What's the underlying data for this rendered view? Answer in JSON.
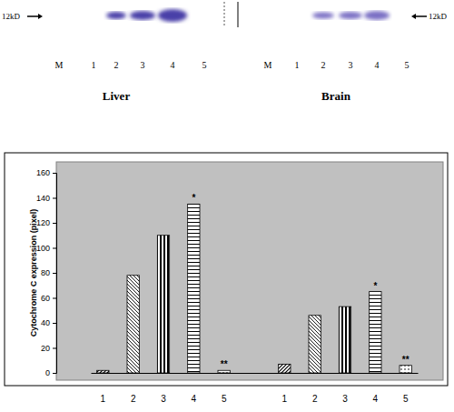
{
  "blot": {
    "marker_label_left": "12kD",
    "marker_label_right": "12kD",
    "lanes": [
      "M",
      "1",
      "2",
      "3",
      "4",
      "5"
    ],
    "tissues": [
      "Liver",
      "Brain"
    ]
  },
  "chart_data": {
    "type": "bar",
    "y_label": "Cytochrome C expression (pixel)",
    "categories": [
      "1",
      "2",
      "3",
      "4",
      "5",
      null,
      "1",
      "2",
      "3",
      "4",
      "5"
    ],
    "values": [
      2,
      78,
      110,
      135,
      2,
      null,
      7,
      46,
      53,
      65,
      6
    ],
    "significance": [
      null,
      null,
      null,
      "*",
      "**",
      null,
      null,
      null,
      null,
      "*",
      "**"
    ],
    "color": "#000000",
    "ylim": [
      0,
      160
    ],
    "yticks": [
      0,
      20,
      40,
      60,
      80,
      100,
      120,
      140,
      160
    ],
    "grid": false
  }
}
